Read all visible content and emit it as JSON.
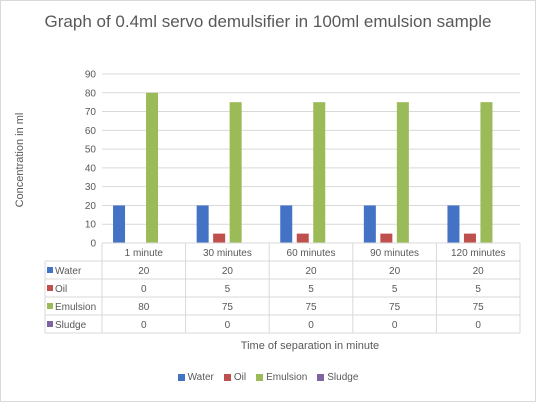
{
  "colors": {
    "water": "#4472c4",
    "oil": "#c0504d",
    "emulsion": "#9bbb59",
    "sludge": "#8064a2",
    "grid": "#d9d9d9",
    "text": "#595959"
  },
  "chart_data": {
    "type": "bar",
    "title": "Graph of 0.4ml servo demulsifier in 100ml emulsion sample",
    "xlabel": "Time of separation in minute",
    "ylabel": "Concentration in ml",
    "ylim": [
      0,
      90
    ],
    "yticks": [
      "0",
      "10",
      "20",
      "30",
      "40",
      "50",
      "60",
      "70",
      "80",
      "90"
    ],
    "grid": true,
    "legend_position": "bottom",
    "categories": [
      "1 minute",
      "30 minutes",
      "60 minutes",
      "90 minutes",
      "120 minutes"
    ],
    "series": [
      {
        "name": "Water",
        "color_key": "water",
        "values": [
          20,
          20,
          20,
          20,
          20
        ]
      },
      {
        "name": "Oil",
        "color_key": "oil",
        "values": [
          0,
          5,
          5,
          5,
          5
        ]
      },
      {
        "name": "Emulsion",
        "color_key": "emulsion",
        "values": [
          80,
          75,
          75,
          75,
          75
        ]
      },
      {
        "name": "Sludge",
        "color_key": "sludge",
        "values": [
          0,
          0,
          0,
          0,
          0
        ]
      }
    ],
    "data_table": true
  }
}
